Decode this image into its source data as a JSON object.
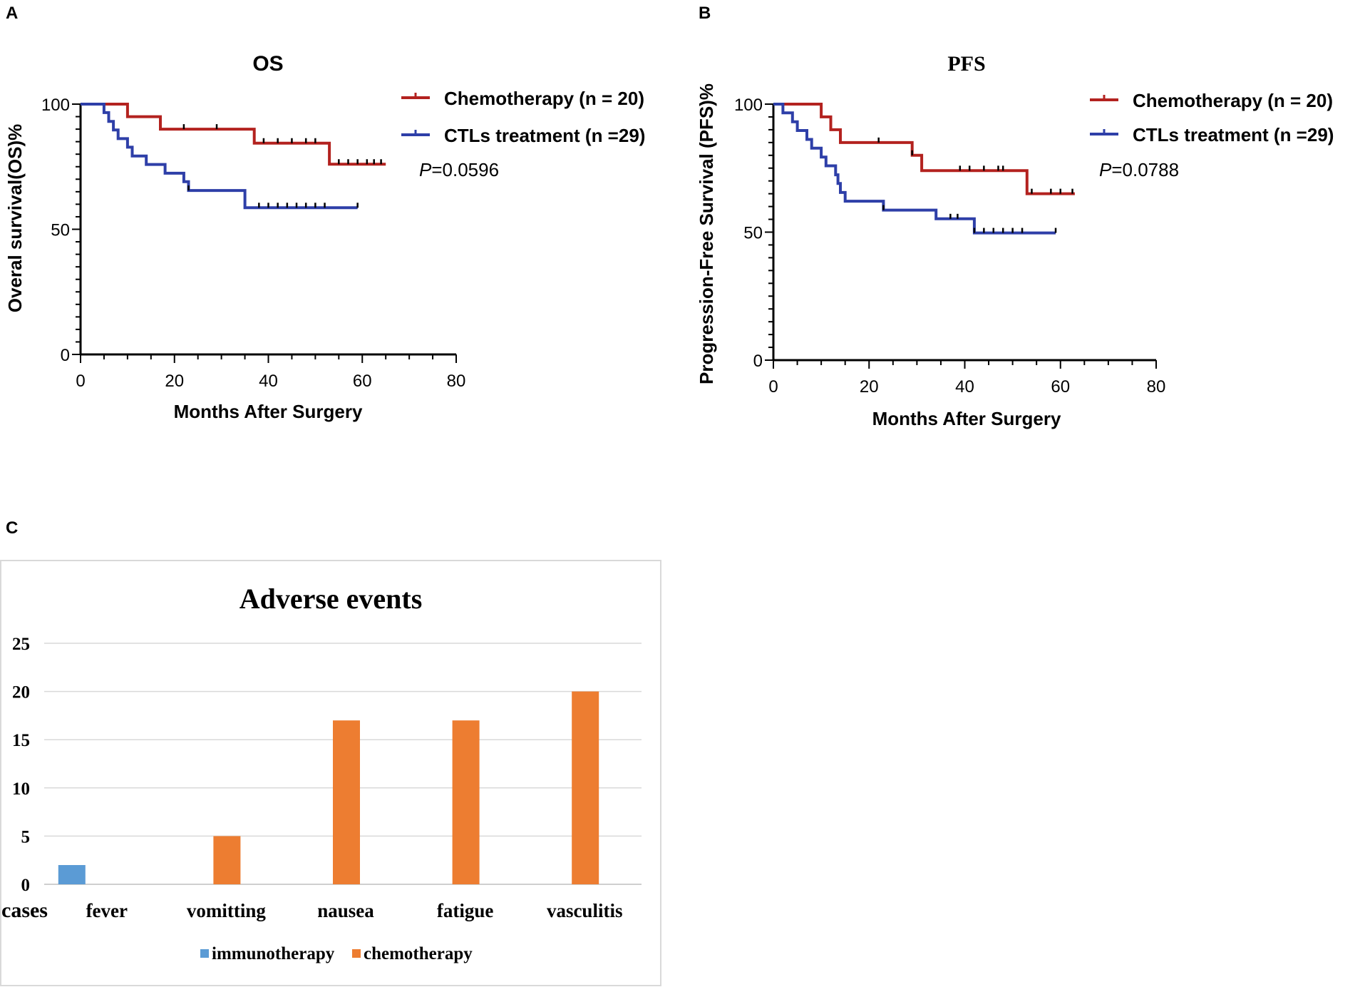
{
  "colors": {
    "chemo_line": "#b3221f",
    "ctl_line": "#2e3fa8",
    "bar_immuno": "#5b9bd5",
    "bar_chemo": "#ed7d31",
    "axis": "#000000",
    "grid": "#d9d9d9",
    "panel_border": "#d9d9d9"
  },
  "panels": {
    "A": {
      "letter": "A"
    },
    "B": {
      "letter": "B"
    },
    "C": {
      "letter": "C"
    }
  },
  "chart_data": [
    {
      "id": "os",
      "type": "line",
      "subtype": "kaplan-meier",
      "title": "OS",
      "xlabel": "Months After Surgery",
      "ylabel": "Overal survival(OS)%",
      "xlim": [
        0,
        80
      ],
      "ylim": [
        0,
        100
      ],
      "xticks": [
        "0",
        "20",
        "40",
        "60",
        "80"
      ],
      "yticks": [
        "0",
        "50",
        "100"
      ],
      "legend_position": "top-right",
      "pvalue": {
        "prefix": "P",
        "text": "=0.0596"
      },
      "series": [
        {
          "name": "Chemotherapy (n = 20)",
          "color": "#b3221f",
          "steps": [
            [
              0,
              100
            ],
            [
              10,
              95
            ],
            [
              17,
              90
            ],
            [
              37,
              84.4
            ],
            [
              53,
              76
            ],
            [
              65,
              76
            ]
          ],
          "censors": [
            [
              22,
              90
            ],
            [
              29,
              90
            ],
            [
              39,
              84.4
            ],
            [
              42,
              84.4
            ],
            [
              45,
              84.4
            ],
            [
              48,
              84.4
            ],
            [
              50,
              84.4
            ],
            [
              55,
              76
            ],
            [
              57,
              76
            ],
            [
              59,
              76
            ],
            [
              61,
              76
            ],
            [
              62.5,
              76
            ],
            [
              64,
              76
            ]
          ]
        },
        {
          "name": "CTLs treatment (n =29)",
          "color": "#2e3fa8",
          "steps": [
            [
              0,
              100
            ],
            [
              5,
              96.6
            ],
            [
              6,
              93.1
            ],
            [
              7,
              89.7
            ],
            [
              8,
              86.2
            ],
            [
              10,
              82.8
            ],
            [
              11,
              79.3
            ],
            [
              14,
              75.9
            ],
            [
              18,
              72.4
            ],
            [
              22,
              69.0
            ],
            [
              23,
              65.5
            ],
            [
              35,
              58.6
            ],
            [
              59,
              58.6
            ]
          ],
          "censors": [
            [
              23,
              65.5
            ],
            [
              38,
              58.6
            ],
            [
              40,
              58.6
            ],
            [
              42,
              58.6
            ],
            [
              44,
              58.6
            ],
            [
              46,
              58.6
            ],
            [
              48,
              58.6
            ],
            [
              50,
              58.6
            ],
            [
              52,
              58.6
            ],
            [
              59,
              58.6
            ]
          ]
        }
      ]
    },
    {
      "id": "pfs",
      "type": "line",
      "subtype": "kaplan-meier",
      "title": "PFS",
      "xlabel": "Months After Surgery",
      "ylabel": "Progression-Free Survival (PFS)%",
      "xlim": [
        0,
        80
      ],
      "ylim": [
        0,
        100
      ],
      "xticks": [
        "0",
        "20",
        "40",
        "60",
        "80"
      ],
      "yticks": [
        "0",
        "50",
        "100"
      ],
      "legend_position": "top-right",
      "pvalue": {
        "prefix": "P",
        "text": "=0.0788"
      },
      "series": [
        {
          "name": "Chemotherapy (n = 20)",
          "color": "#b3221f",
          "steps": [
            [
              0,
              100
            ],
            [
              10,
              95
            ],
            [
              12,
              90
            ],
            [
              14,
              85
            ],
            [
              29,
              80
            ],
            [
              31,
              74
            ],
            [
              53,
              65
            ],
            [
              63,
              65
            ]
          ],
          "censors": [
            [
              22,
              85
            ],
            [
              29,
              80
            ],
            [
              39,
              74
            ],
            [
              41,
              74
            ],
            [
              44,
              74
            ],
            [
              47,
              74
            ],
            [
              48,
              74
            ],
            [
              54,
              65
            ],
            [
              58,
              65
            ],
            [
              60,
              65
            ],
            [
              62.5,
              65
            ]
          ]
        },
        {
          "name": "CTLs treatment (n =29)",
          "color": "#2e3fa8",
          "steps": [
            [
              0,
              100
            ],
            [
              2,
              96.6
            ],
            [
              4,
              93.1
            ],
            [
              5,
              89.7
            ],
            [
              7,
              86.2
            ],
            [
              8,
              82.8
            ],
            [
              10,
              79.3
            ],
            [
              11,
              75.9
            ],
            [
              13,
              72.4
            ],
            [
              13.5,
              69.0
            ],
            [
              14,
              65.5
            ],
            [
              15,
              62.1
            ],
            [
              23,
              58.6
            ],
            [
              34,
              55.2
            ],
            [
              42,
              49.7
            ],
            [
              59,
              49.7
            ]
          ],
          "censors": [
            [
              23,
              58.6
            ],
            [
              37,
              55.2
            ],
            [
              38.5,
              55.2
            ],
            [
              42,
              49.7
            ],
            [
              44,
              49.7
            ],
            [
              46,
              49.7
            ],
            [
              48,
              49.7
            ],
            [
              50,
              49.7
            ],
            [
              52,
              49.7
            ],
            [
              59,
              49.7
            ]
          ]
        }
      ]
    },
    {
      "id": "adverse",
      "type": "bar",
      "title": "Adverse events",
      "xlabel": "",
      "ylabel": "cases",
      "ylim": [
        0,
        25
      ],
      "yticks": [
        "0",
        "5",
        "10",
        "15",
        "20",
        "25"
      ],
      "grid": true,
      "legend_position": "bottom",
      "categories": [
        "fever",
        "vomitting",
        "nausea",
        "fatigue",
        "vasculitis"
      ],
      "series": [
        {
          "name": "immunotherapy",
          "color": "#5b9bd5",
          "values": [
            2,
            0,
            0,
            0,
            0
          ]
        },
        {
          "name": "chemotherapy",
          "color": "#ed7d31",
          "values": [
            0,
            5,
            17,
            17,
            20
          ]
        }
      ]
    }
  ]
}
